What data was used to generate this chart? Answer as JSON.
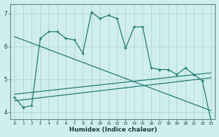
{
  "xlabel": "Humidex (Indice chaleur)",
  "bg_color": "#d0eeee",
  "grid_color": "#b0d8d8",
  "line_color": "#1a7a6e",
  "xlim": [
    -0.5,
    23.5
  ],
  "ylim": [
    3.8,
    7.3
  ],
  "yticks": [
    4,
    5,
    6,
    7
  ],
  "xticks": [
    0,
    1,
    2,
    3,
    4,
    5,
    6,
    7,
    8,
    9,
    10,
    11,
    12,
    13,
    14,
    15,
    16,
    17,
    18,
    19,
    20,
    21,
    22,
    23
  ],
  "series1_x": [
    0,
    1,
    2,
    3,
    4,
    5,
    6,
    7,
    8,
    9,
    10,
    11,
    12,
    13,
    14,
    15,
    16,
    17,
    18,
    19,
    20,
    21,
    22,
    23
  ],
  "series1_y": [
    4.45,
    4.15,
    4.2,
    6.25,
    6.45,
    6.45,
    6.25,
    6.2,
    5.8,
    7.05,
    6.85,
    6.95,
    6.85,
    5.95,
    6.6,
    6.6,
    5.35,
    5.3,
    5.3,
    5.15,
    5.35,
    5.15,
    4.95,
    3.75
  ],
  "series2_x": [
    0,
    23
  ],
  "series2_y": [
    4.35,
    5.05
  ],
  "series3_x": [
    0,
    23
  ],
  "series3_y": [
    6.3,
    4.05
  ],
  "series4_x": [
    0,
    23
  ],
  "series4_y": [
    4.55,
    5.2
  ]
}
